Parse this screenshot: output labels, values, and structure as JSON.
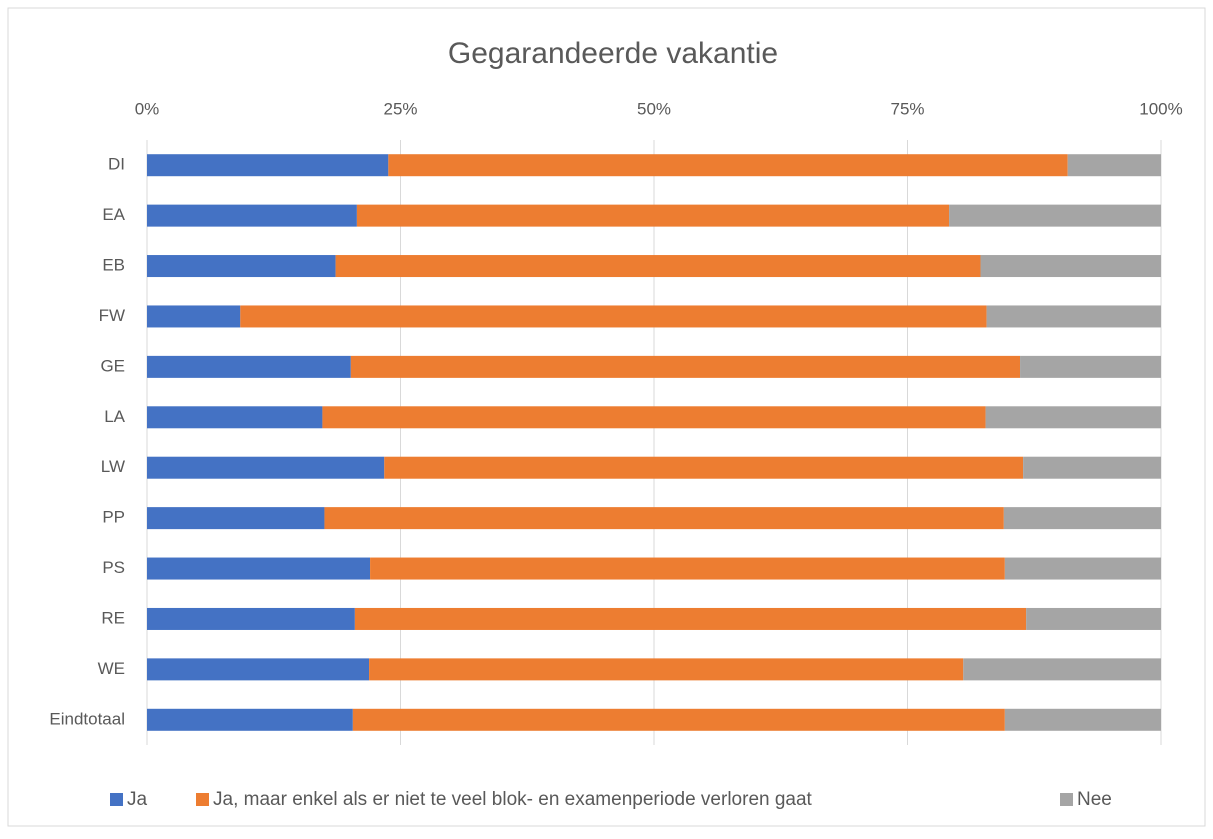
{
  "chart_data": {
    "type": "stacked_barh",
    "title": "Gegarandeerde vakantie",
    "categories": [
      "DI",
      "EA",
      "EB",
      "FW",
      "GE",
      "LA",
      "LW",
      "PP",
      "PS",
      "RE",
      "WE",
      "Eindtotaal"
    ],
    "series": [
      {
        "name": "Ja",
        "color": "#4472c4",
        "values": [
          23.8,
          20.7,
          18.6,
          9.2,
          20.1,
          17.3,
          23.4,
          17.5,
          22.0,
          20.5,
          21.9,
          20.3
        ]
      },
      {
        "name": "Ja, maar enkel als er niet te veel blok- en examenperiode verloren gaat",
        "color": "#ed7d31",
        "values": [
          67.0,
          58.4,
          63.6,
          73.6,
          66.0,
          65.4,
          63.0,
          67.0,
          62.6,
          66.2,
          58.6,
          64.3
        ]
      },
      {
        "name": "Nee",
        "color": "#a5a5a5",
        "values": [
          9.2,
          20.9,
          17.8,
          17.2,
          13.9,
          17.3,
          13.6,
          15.5,
          15.4,
          13.3,
          19.5,
          15.4
        ]
      }
    ],
    "xlim": [
      0,
      100
    ],
    "xticks": [
      {
        "value": 0,
        "label": "0%"
      },
      {
        "value": 25,
        "label": "25%"
      },
      {
        "value": 50,
        "label": "50%"
      },
      {
        "value": 75,
        "label": "75%"
      },
      {
        "value": 100,
        "label": "100%"
      }
    ],
    "grid": true,
    "legend": "bottom"
  }
}
